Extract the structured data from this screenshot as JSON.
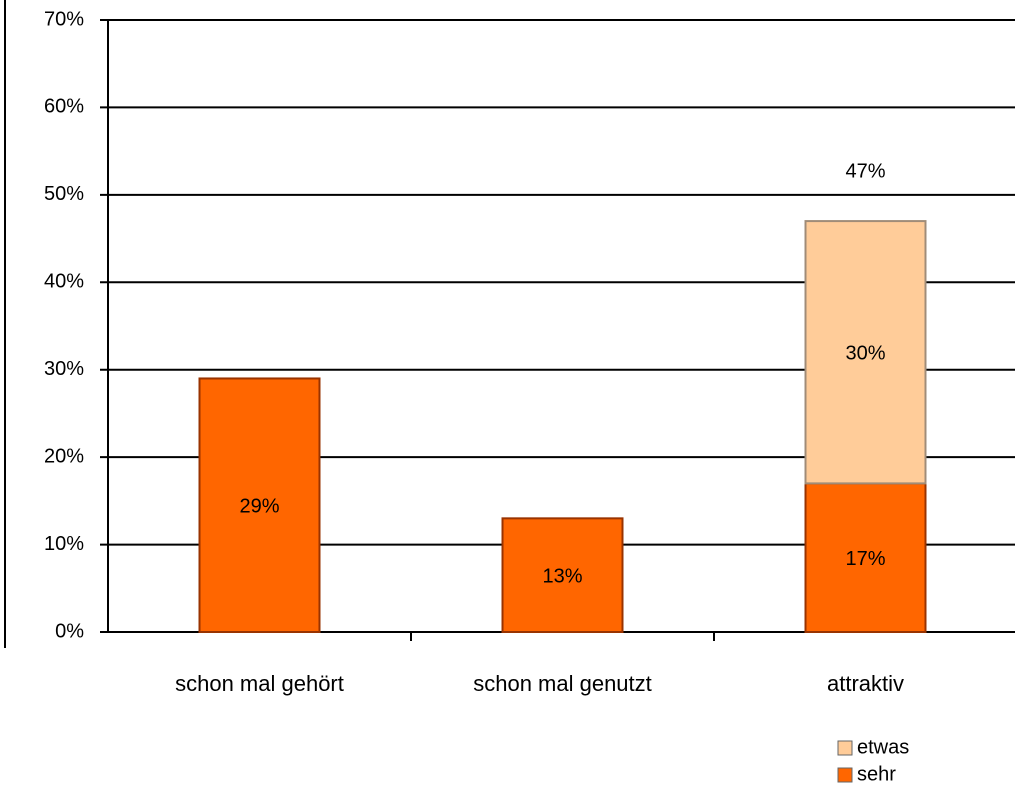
{
  "chart_data": {
    "type": "stacked_bar",
    "categories": [
      "schon mal gehört",
      "schon mal genutzt",
      "attraktiv"
    ],
    "series": [
      {
        "name": "sehr",
        "color": "#ff6600",
        "values": [
          29,
          13,
          17
        ],
        "value_labels": [
          "29%",
          "13%",
          "17%"
        ]
      },
      {
        "name": "etwas",
        "color": "#ffcc99",
        "values": [
          null,
          null,
          30
        ],
        "value_labels": [
          null,
          null,
          "30%"
        ]
      }
    ],
    "totals": [
      null,
      null,
      47
    ],
    "total_labels": [
      null,
      null,
      "47%"
    ],
    "ylim": [
      0,
      70
    ],
    "yticks": [
      {
        "value": 0,
        "label": "0%"
      },
      {
        "value": 10,
        "label": "10%"
      },
      {
        "value": 20,
        "label": "20%"
      },
      {
        "value": 30,
        "label": "30%"
      },
      {
        "value": 40,
        "label": "40%"
      },
      {
        "value": 50,
        "label": "50%"
      },
      {
        "value": 60,
        "label": "60%"
      },
      {
        "value": 70,
        "label": "70%"
      }
    ],
    "grid": true,
    "legend": "bottom-right"
  }
}
